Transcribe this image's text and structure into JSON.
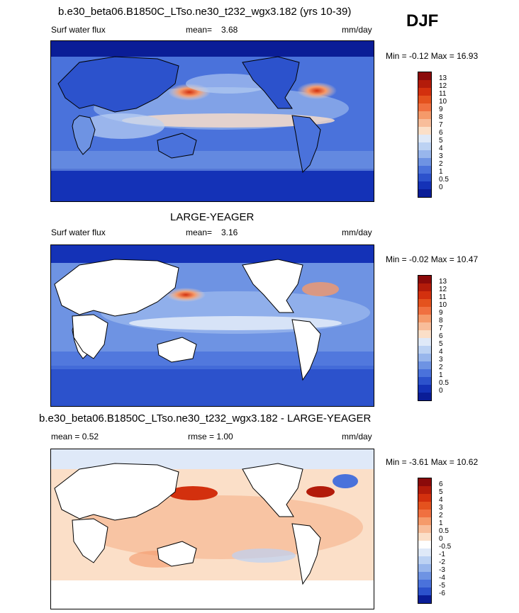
{
  "season": "DJF",
  "panels": [
    {
      "title": "b.e30_beta06.B1850C_LTso.ne30_t232_wgx3.182 (yrs 10-39)",
      "left_label": "Surf water flux",
      "mean_label": "mean=",
      "mean_value": "3.68",
      "units": "mm/day",
      "min_label": "Min =",
      "min_value": "-0.12",
      "max_label": "Max =",
      "max_value": "16.93",
      "colorbar_ticks": [
        "13",
        "12",
        "11",
        "10",
        "9",
        "8",
        "7",
        "6",
        "5",
        "4",
        "3",
        "2",
        "1",
        "0.5",
        "0"
      ],
      "colors": [
        "#8b0a0a",
        "#b31b0a",
        "#d3300e",
        "#e4521e",
        "#f07040",
        "#f59a6a",
        "#f8bd9a",
        "#fbdfc8",
        "#dfe9f8",
        "#bcd2f3",
        "#98b6ec",
        "#6e93e3",
        "#4a72db",
        "#2c52cc",
        "#1432b7",
        "#0a1d97"
      ]
    },
    {
      "title": "LARGE-YEAGER",
      "left_label": "Surf water flux",
      "mean_label": "mean=",
      "mean_value": "3.16",
      "units": "mm/day",
      "min_label": "Min =",
      "min_value": "-0.02",
      "max_label": "Max =",
      "max_value": "10.47",
      "colorbar_ticks": [
        "13",
        "12",
        "11",
        "10",
        "9",
        "8",
        "7",
        "6",
        "5",
        "4",
        "3",
        "2",
        "1",
        "0.5",
        "0"
      ],
      "colors": [
        "#8b0a0a",
        "#b31b0a",
        "#d3300e",
        "#e4521e",
        "#f07040",
        "#f59a6a",
        "#f8bd9a",
        "#fbdfc8",
        "#dfe9f8",
        "#bcd2f3",
        "#98b6ec",
        "#6e93e3",
        "#4a72db",
        "#2c52cc",
        "#1432b7",
        "#0a1d97"
      ]
    },
    {
      "title": "b.e30_beta06.B1850C_LTso.ne30_t232_wgx3.182 - LARGE-YEAGER",
      "left_label": "",
      "mean_label": "mean =",
      "mean_value": "0.52",
      "rmse_label": "rmse =",
      "rmse_value": "1.00",
      "units": "mm/day",
      "min_label": "Min =",
      "min_value": "-3.61",
      "max_label": "Max =",
      "max_value": "10.62",
      "colorbar_ticks": [
        "6",
        "5",
        "4",
        "3",
        "2",
        "1",
        "0.5",
        "0",
        "-0.5",
        "-1",
        "-2",
        "-3",
        "-4",
        "-5",
        "-6"
      ],
      "colors": [
        "#8b0a0a",
        "#b31b0a",
        "#d3300e",
        "#e4521e",
        "#f07040",
        "#f59a6a",
        "#f8bd9a",
        "#fbdfc8",
        "#ffffff",
        "#dfe9f8",
        "#bcd2f3",
        "#98b6ec",
        "#6e93e3",
        "#4a72db",
        "#2c52cc",
        "#0a1d97"
      ]
    }
  ]
}
